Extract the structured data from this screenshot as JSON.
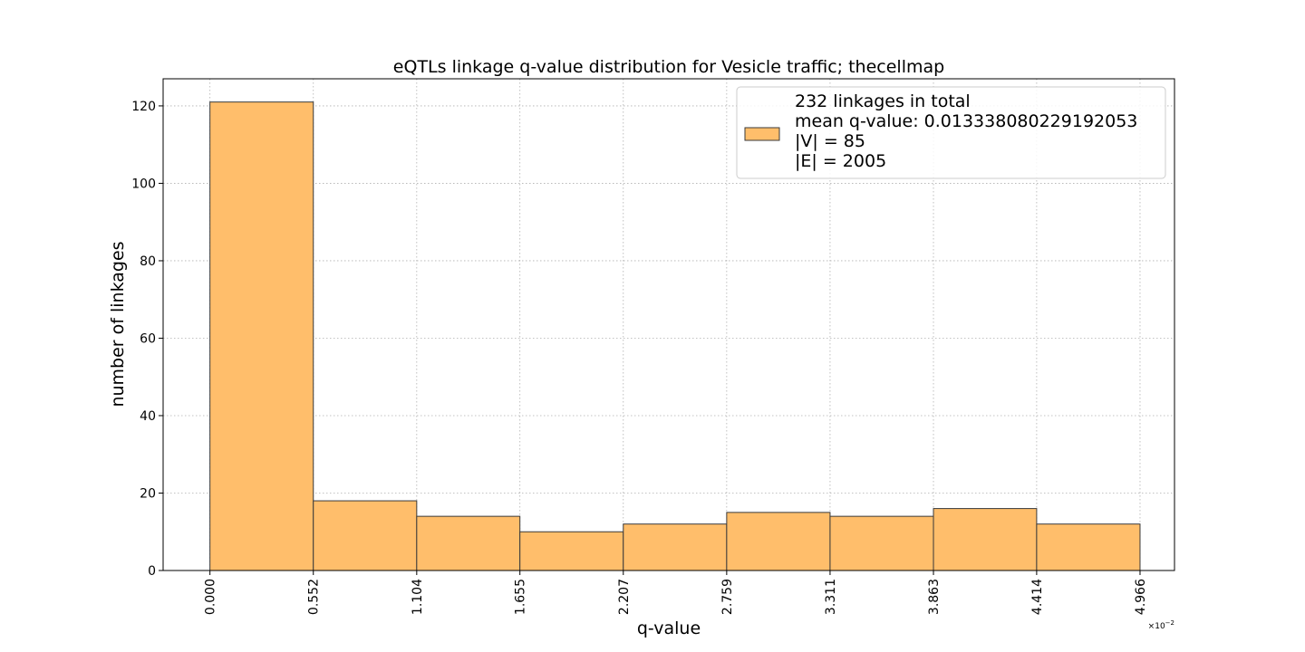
{
  "chart_data": {
    "type": "bar",
    "title": "eQTLs linkage q-value distribution for Vesicle traffic; thecellmap",
    "xlabel": "q-value",
    "ylabel": "number of linkages",
    "x_scale_label": "×10",
    "x_scale_exponent": "−2",
    "x_ticks": [
      "0.000",
      "0.552",
      "1.104",
      "1.655",
      "2.207",
      "2.759",
      "3.311",
      "3.863",
      "4.414",
      "4.966"
    ],
    "bin_edges": [
      0.0,
      0.552,
      1.104,
      1.655,
      2.207,
      2.759,
      3.311,
      3.863,
      4.414,
      4.966
    ],
    "values": [
      121,
      18,
      14,
      10,
      12,
      15,
      14,
      16,
      12
    ],
    "xlim": [
      -0.25,
      5.15
    ],
    "ylim": [
      0,
      127
    ],
    "y_ticks": [
      0,
      20,
      40,
      60,
      80,
      100,
      120
    ],
    "grid": true,
    "bar_color": "#ffbe6b",
    "edge_color": "#3a3a3a",
    "legend": {
      "position": "top-right",
      "lines": [
        "232 linkages in total",
        "mean q-value: 0.013338080229192053",
        "|V| = 85",
        "|E| = 2005"
      ]
    }
  }
}
